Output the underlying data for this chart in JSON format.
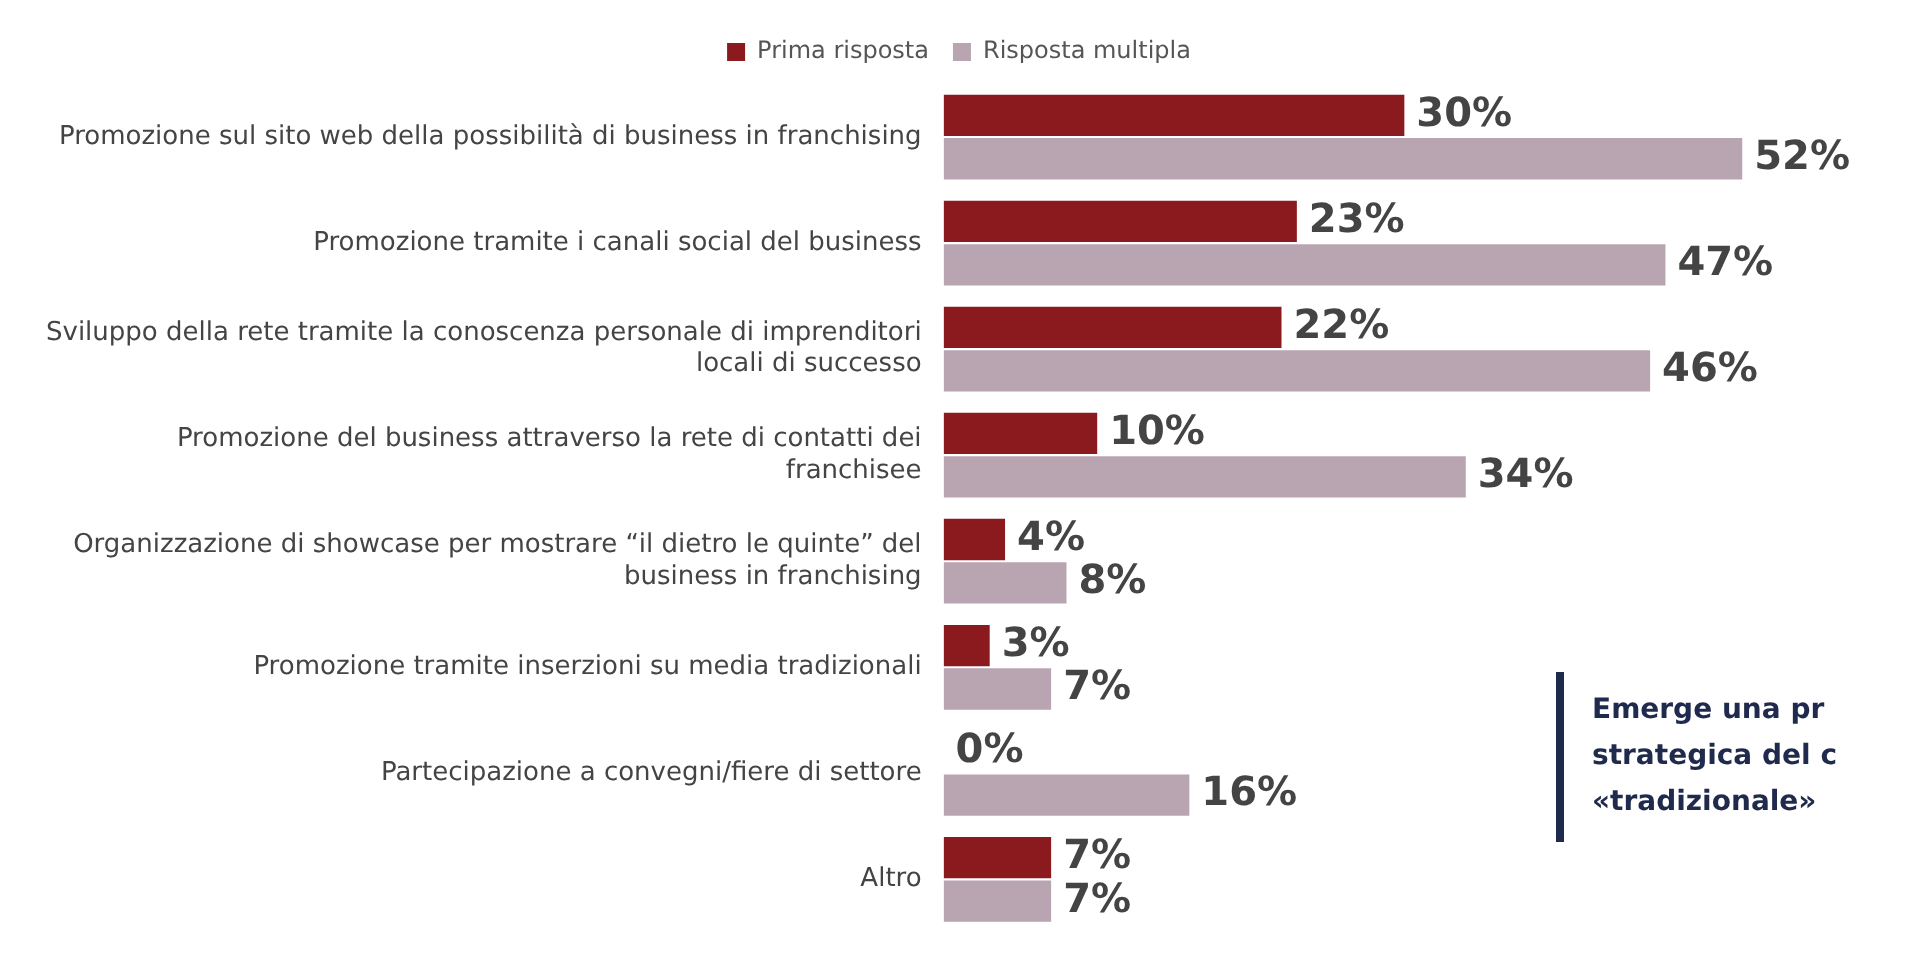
{
  "chart_data": {
    "type": "bar",
    "orientation": "horizontal",
    "legend": "top",
    "grid": false,
    "tick_labels": "y",
    "categories": [
      "Promozione sul sito web della possibilità di business in franchising",
      "Promozione tramite i canali social del business",
      "Sviluppo della rete tramite la conoscenza personale di imprenditori locali di successo",
      "Promozione del business attraverso la rete di contatti dei franchisee",
      "Organizzazione di showcase per mostrare “il dietro le quinte” del business in franchising",
      "Promozione tramite inserzioni su media tradizionali",
      "Partecipazione a convegni/fiere di settore",
      "Altro"
    ],
    "series": [
      {
        "name": "Prima risposta",
        "color": "#8b1a1e",
        "values": [
          30,
          23,
          22,
          10,
          4,
          3,
          0,
          7
        ],
        "value_labels": [
          "30%",
          "23%",
          "22%",
          "10%",
          "4%",
          "3%",
          "0%",
          "7%"
        ]
      },
      {
        "name": "Risposta multipla",
        "color": "#b9a4b2",
        "values": [
          52,
          47,
          46,
          34,
          8,
          7,
          16,
          7
        ],
        "value_labels": [
          "52%",
          "47%",
          "46%",
          "34%",
          "8%",
          "7%",
          "16%",
          "7%"
        ]
      }
    ],
    "annotations": [
      "Emerge una pr",
      "strategica del c",
      "«tradizionale»"
    ]
  }
}
